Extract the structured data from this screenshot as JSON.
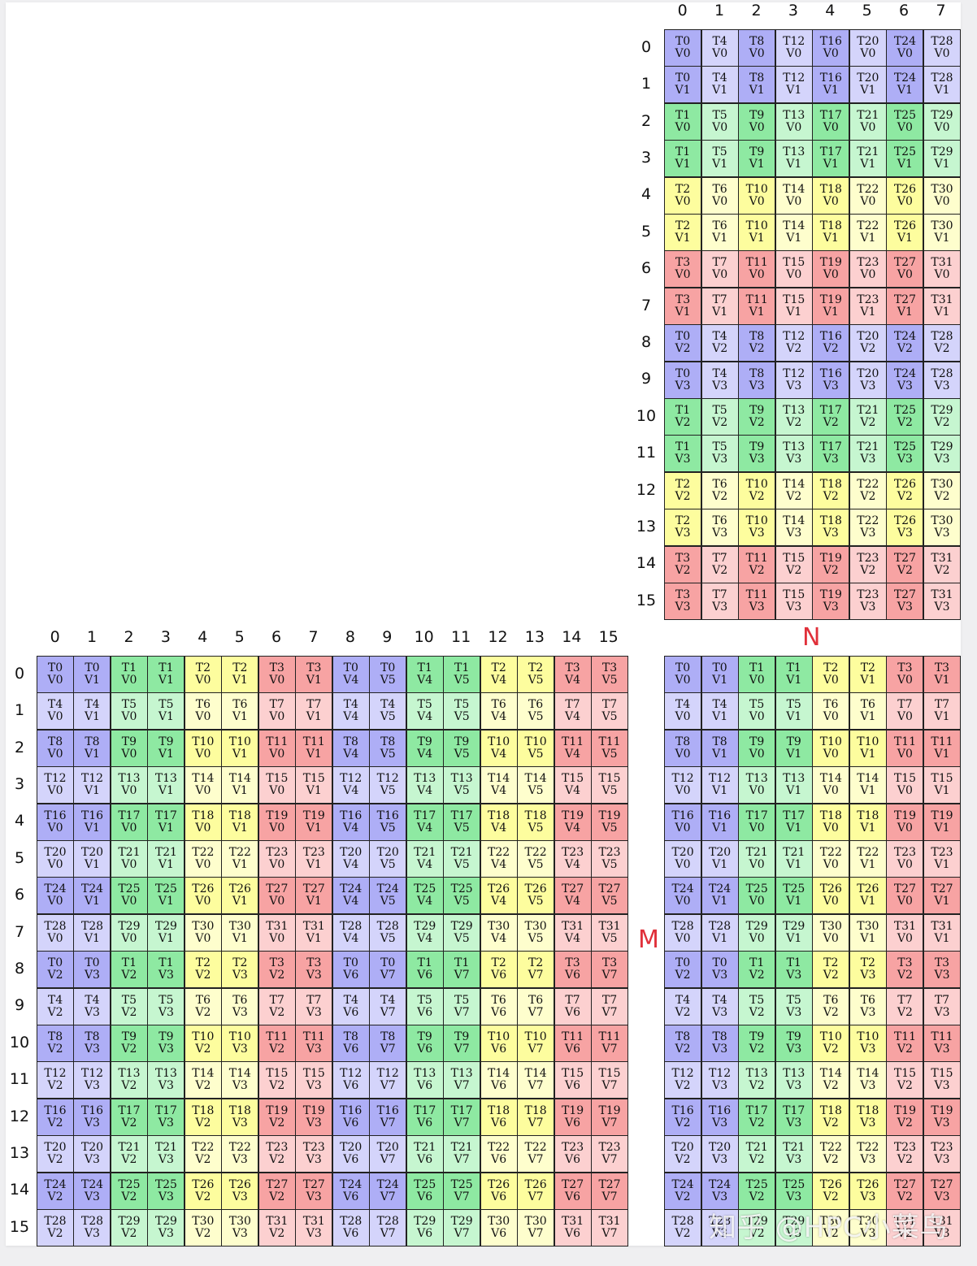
{
  "colors": {
    "blue": {
      "dark": "#aeaef6",
      "light": "#d4d4fb"
    },
    "green": {
      "dark": "#8ee9a2",
      "light": "#c6f6d0"
    },
    "yellow": {
      "dark": "#fdfd9e",
      "light": "#fefecd"
    },
    "red": {
      "dark": "#f7a3a3",
      "light": "#fcd0d0"
    },
    "axis_letter": "#e0303a"
  },
  "axis_letters": {
    "n": "N",
    "m": "M"
  },
  "watermark": "知乎 @HPC小菜鸟",
  "matrices": {
    "B": {
      "description": "Top-right 16x8 matrix; T = group + 4*col, V = row%2 + 2*(row//8); group = (row%8)//2",
      "rows": 16,
      "cols": 8,
      "col_labels": [
        "0",
        "1",
        "2",
        "3",
        "4",
        "5",
        "6",
        "7"
      ],
      "row_labels": [
        "0",
        "1",
        "2",
        "3",
        "4",
        "5",
        "6",
        "7",
        "8",
        "9",
        "10",
        "11",
        "12",
        "13",
        "14",
        "15"
      ]
    },
    "A": {
      "description": "Bottom-left 16x16 matrix; T = (row%8)*4 + (col%8)//2, V = col%2 + 4*(col//8) + 2*(row//8)",
      "rows": 16,
      "cols": 16,
      "col_labels": [
        "0",
        "1",
        "2",
        "3",
        "4",
        "5",
        "6",
        "7",
        "8",
        "9",
        "10",
        "11",
        "12",
        "13",
        "14",
        "15"
      ],
      "row_labels": [
        "0",
        "1",
        "2",
        "3",
        "4",
        "5",
        "6",
        "7",
        "8",
        "9",
        "10",
        "11",
        "12",
        "13",
        "14",
        "15"
      ]
    },
    "C": {
      "description": "Bottom-right 16x8 matrix; T = (row%8)*4 + col//2, V = col%2 + 2*(row//8)",
      "rows": 16,
      "cols": 8
    }
  }
}
